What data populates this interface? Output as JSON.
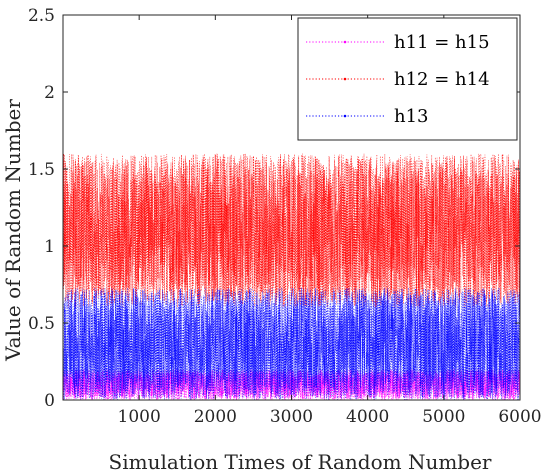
{
  "chart_data": {
    "type": "line",
    "title": "",
    "xlabel": "Simulation Times of Random Number",
    "ylabel": "Value of Random Number",
    "xlim": [
      0,
      6000
    ],
    "ylim": [
      0,
      2.5
    ],
    "xticks": [
      1000,
      2000,
      3000,
      4000,
      5000,
      6000
    ],
    "yticks": [
      0,
      0.5,
      1,
      1.5,
      2,
      2.5
    ],
    "xtick_labels": [
      "1000",
      "2000",
      "3000",
      "4000",
      "5000",
      "6000"
    ],
    "ytick_labels": [
      "0",
      "0.5",
      "1",
      "1.5",
      "2",
      "2.5"
    ],
    "grid": false,
    "legend_position": "top-right",
    "num_samples": 6000,
    "series": [
      {
        "name": "h11 = h15",
        "color": "#ff00ff",
        "line_style": "dotted",
        "min": 0.0,
        "max": 0.2
      },
      {
        "name": "h12 = h14",
        "color": "#ff0000",
        "line_style": "dotted",
        "min": 0.6,
        "max": 1.6
      },
      {
        "name": "h13",
        "color": "#0000ff",
        "line_style": "dotted",
        "min": 0.0,
        "max": 0.73
      }
    ]
  }
}
